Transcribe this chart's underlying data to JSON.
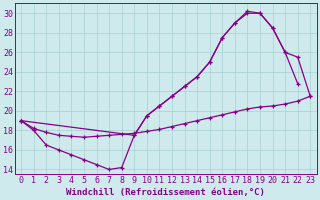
{
  "xlabel": "Windchill (Refroidissement éolien,°C)",
  "bg_color": "#ceeaec",
  "grid_color": "#aacfd2",
  "line_color": "#880088",
  "xlim": [
    -0.5,
    23.5
  ],
  "ylim": [
    13.5,
    31.0
  ],
  "xticks": [
    0,
    1,
    2,
    3,
    4,
    5,
    6,
    7,
    8,
    9,
    10,
    11,
    12,
    13,
    14,
    15,
    16,
    17,
    18,
    19,
    20,
    21,
    22,
    23
  ],
  "yticks": [
    14,
    16,
    18,
    20,
    22,
    24,
    26,
    28,
    30
  ],
  "line1_x": [
    0,
    1,
    2,
    3,
    4,
    5,
    6,
    7,
    8,
    9,
    10,
    11,
    12,
    13,
    14,
    15,
    16,
    17,
    18,
    19,
    20,
    21,
    22
  ],
  "line1_y": [
    19.0,
    18.0,
    16.5,
    16.0,
    15.5,
    15.0,
    14.5,
    14.0,
    14.2,
    17.5,
    19.5,
    20.5,
    21.5,
    22.5,
    23.5,
    25.0,
    27.5,
    29.0,
    30.0,
    30.0,
    28.5,
    26.0,
    22.8
  ],
  "line2_x": [
    0,
    1,
    2,
    3,
    4,
    5,
    6,
    7,
    8,
    9,
    10,
    11,
    12,
    13,
    14,
    15,
    16,
    17,
    18,
    19,
    20,
    21,
    22,
    23
  ],
  "line2_y": [
    19.0,
    18.2,
    17.8,
    17.5,
    17.4,
    17.3,
    17.4,
    17.5,
    17.6,
    17.7,
    17.9,
    18.1,
    18.4,
    18.7,
    19.0,
    19.3,
    19.6,
    19.9,
    20.2,
    20.4,
    20.5,
    20.7,
    21.0,
    21.5
  ],
  "line3_x": [
    0,
    9,
    10,
    11,
    12,
    13,
    14,
    15,
    16,
    17,
    18,
    19,
    20,
    21,
    22,
    23
  ],
  "line3_y": [
    19.0,
    17.5,
    19.5,
    20.5,
    21.5,
    22.5,
    23.5,
    25.0,
    27.5,
    29.0,
    30.2,
    30.0,
    28.5,
    26.0,
    25.5,
    21.5
  ],
  "xlabel_fontsize": 6.5,
  "tick_fontsize": 6.0,
  "lw": 0.9,
  "markersize": 3.5,
  "markeredgewidth": 0.9
}
